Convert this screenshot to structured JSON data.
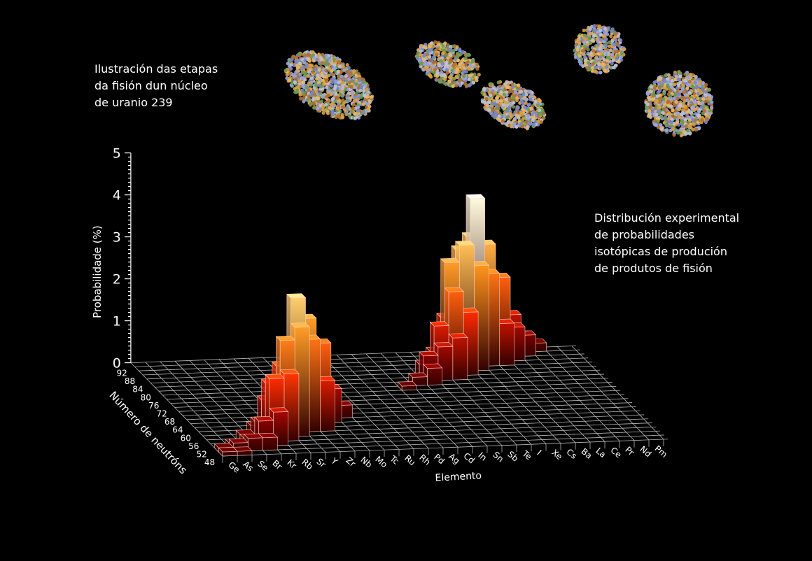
{
  "captions": {
    "illustration": [
      "Ilustración das etapas",
      "da fisión dun núcleo",
      "de uranio 239"
    ],
    "description": [
      "Distribución experimental",
      "de probabilidades",
      "isotópicas de produción",
      "de produtos de fisión"
    ]
  },
  "colors": {
    "background": "#000000",
    "grid": "#d8d8d8",
    "low": "#3a0000",
    "mid": "#ff2a00",
    "high": "#ffb020",
    "top": "#ffffff"
  },
  "chart_data": {
    "type": "bar3d",
    "title": "Distribución experimental de probabilidades isotópicas de produción de produtos de fisión",
    "xlabel": "Elemento",
    "ylabel": "Número de neutróns",
    "zlabel": "Probabilidade (%)",
    "zlim": [
      0,
      5
    ],
    "zticks": [
      "0",
      "1",
      "2",
      "3",
      "4",
      "5"
    ],
    "neutron_ticks": [
      "48",
      "52",
      "56",
      "60",
      "64",
      "68",
      "72",
      "76",
      "80",
      "84",
      "88",
      "92"
    ],
    "elements": [
      "Ge",
      "As",
      "Se",
      "Br",
      "Kr",
      "Rb",
      "Sr",
      "Y",
      "Zr",
      "Nb",
      "Mo",
      "Tc",
      "Ru",
      "Rh",
      "Pd",
      "Ag",
      "Cd",
      "In",
      "Sn",
      "Sb",
      "Te",
      "I",
      "Xe",
      "Cs",
      "Ba",
      "La",
      "Ce",
      "Pr",
      "Nd",
      "Pm"
    ],
    "bars": [
      [
        "Ge",
        48,
        0.1
      ],
      [
        "Ge",
        50,
        0.1
      ],
      [
        "As",
        48,
        0.1
      ],
      [
        "As",
        50,
        0.2
      ],
      [
        "As",
        52,
        0.1
      ],
      [
        "Se",
        50,
        0.3
      ],
      [
        "Se",
        52,
        0.2
      ],
      [
        "Se",
        54,
        0.2
      ],
      [
        "Br",
        50,
        0.3
      ],
      [
        "Br",
        52,
        0.6
      ],
      [
        "Br",
        54,
        0.5
      ],
      [
        "Br",
        56,
        0.3
      ],
      [
        "Kr",
        52,
        0.8
      ],
      [
        "Kr",
        54,
        1.5
      ],
      [
        "Kr",
        56,
        1.3
      ],
      [
        "Kr",
        58,
        0.8
      ],
      [
        "Rb",
        54,
        1.6
      ],
      [
        "Rb",
        56,
        2.3
      ],
      [
        "Rb",
        58,
        1.6
      ],
      [
        "Rb",
        60,
        0.6
      ],
      [
        "Sr",
        56,
        2.6
      ],
      [
        "Sr",
        58,
        3.2
      ],
      [
        "Sr",
        60,
        2.0
      ],
      [
        "Sr",
        62,
        0.8
      ],
      [
        "Y",
        58,
        2.2
      ],
      [
        "Y",
        60,
        2.6
      ],
      [
        "Y",
        62,
        1.5
      ],
      [
        "Y",
        64,
        0.5
      ],
      [
        "Zr",
        58,
        1.2
      ],
      [
        "Zr",
        60,
        2.0
      ],
      [
        "Zr",
        62,
        1.8
      ],
      [
        "Zr",
        64,
        1.0
      ],
      [
        "Nb",
        62,
        0.8
      ],
      [
        "Nb",
        64,
        0.6
      ],
      [
        "Nb",
        66,
        0.3
      ],
      [
        "Mo",
        64,
        0.3
      ],
      [
        "Mo",
        66,
        0.2
      ],
      [
        "Cd",
        76,
        0.1
      ],
      [
        "In",
        78,
        0.2
      ],
      [
        "Sn",
        78,
        0.4
      ],
      [
        "Sn",
        80,
        0.6
      ],
      [
        "Sn",
        82,
        0.3
      ],
      [
        "Sb",
        80,
        0.8
      ],
      [
        "Sb",
        82,
        1.2
      ],
      [
        "Sb",
        84,
        0.5
      ],
      [
        "Te",
        80,
        1.0
      ],
      [
        "Te",
        82,
        2.0
      ],
      [
        "Te",
        84,
        2.6
      ],
      [
        "Te",
        86,
        1.2
      ],
      [
        "I",
        82,
        1.5
      ],
      [
        "I",
        84,
        3.0
      ],
      [
        "I",
        86,
        2.8
      ],
      [
        "I",
        88,
        1.0
      ],
      [
        "Xe",
        84,
        2.5
      ],
      [
        "Xe",
        86,
        4.0
      ],
      [
        "Xe",
        88,
        3.0
      ],
      [
        "Xe",
        90,
        0.9
      ],
      [
        "Cs",
        86,
        2.2
      ],
      [
        "Cs",
        88,
        2.8
      ],
      [
        "Cs",
        90,
        1.6
      ],
      [
        "Ba",
        86,
        1.0
      ],
      [
        "Ba",
        88,
        2.0
      ],
      [
        "Ba",
        90,
        1.8
      ],
      [
        "Ba",
        92,
        0.6
      ],
      [
        "La",
        88,
        0.8
      ],
      [
        "La",
        90,
        1.0
      ],
      [
        "La",
        92,
        0.4
      ],
      [
        "Ce",
        90,
        0.5
      ],
      [
        "Ce",
        92,
        0.4
      ],
      [
        "Pr",
        92,
        0.2
      ]
    ],
    "grid": true
  }
}
